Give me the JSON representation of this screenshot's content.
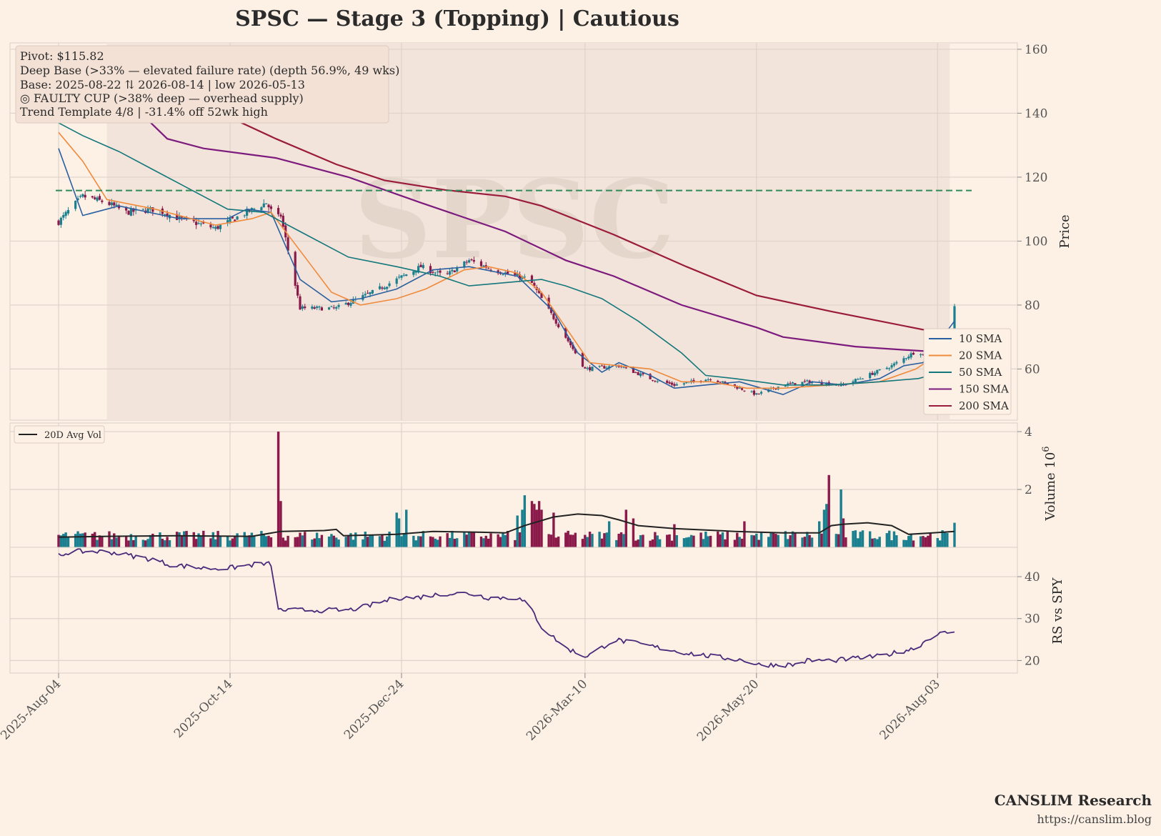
{
  "title": "SPSC  —  Stage 3 (Topping)  |  Cautious",
  "watermark": "SPSC",
  "info_box": [
    "Pivot: $115.82",
    "Deep Base (>33% — elevated failure rate)  (depth 56.9%, 49 wks)",
    "Base: 2025-08-22 ⇅ 2026-08-14  |  low 2026-05-13",
    "◎ FAULTY CUP (>38% deep — overhead supply)",
    "Trend Template 4/8  |  -31.4% off 52wk high"
  ],
  "branding": {
    "name": "CANSLIM Research",
    "url": "https://canslim.blog"
  },
  "colors": {
    "background": "#fdf1e6",
    "up": "#1a7f8e",
    "down": "#8b1a4a",
    "pivot": "#2e8b57",
    "sma10": "#2a5fa0",
    "sma20": "#f08a3c",
    "sma50": "#13777c",
    "sma150": "#7d1a7d",
    "sma200": "#9b1b3c",
    "avgvol": "#222222",
    "rs": "#4a2a7a"
  },
  "chart_data": {
    "type": "candlestick",
    "x_tick_labels": [
      "2025-Aug-04",
      "2025-Oct-14",
      "2025-Dec-24",
      "2026-Mar-10",
      "2026-May-20",
      "2026-Aug-03"
    ],
    "x_tick_days": [
      0,
      71,
      142,
      218,
      289,
      364
    ],
    "base_shading_days": [
      20,
      369
    ],
    "price_panel": {
      "ylabel": "Price",
      "yticks": [
        60,
        80,
        100,
        120,
        140,
        160
      ],
      "ylim": [
        44,
        162
      ],
      "pivot": 115.82,
      "price_path": [
        [
          0,
          106
        ],
        [
          6,
          111
        ],
        [
          10,
          114
        ],
        [
          20,
          112
        ],
        [
          28,
          109
        ],
        [
          40,
          110
        ],
        [
          50,
          107
        ],
        [
          65,
          104
        ],
        [
          78,
          109
        ],
        [
          86,
          112
        ],
        [
          90,
          107
        ],
        [
          92,
          108
        ],
        [
          100,
          79
        ],
        [
          115,
          79
        ],
        [
          130,
          84
        ],
        [
          140,
          88
        ],
        [
          150,
          92
        ],
        [
          160,
          89
        ],
        [
          170,
          94
        ],
        [
          180,
          91
        ],
        [
          195,
          88
        ],
        [
          210,
          70
        ],
        [
          218,
          60
        ],
        [
          232,
          61
        ],
        [
          245,
          57
        ],
        [
          255,
          55
        ],
        [
          270,
          57
        ],
        [
          282,
          54
        ],
        [
          289,
          52
        ],
        [
          300,
          55
        ],
        [
          310,
          56
        ],
        [
          325,
          55
        ],
        [
          345,
          61
        ],
        [
          356,
          66
        ],
        [
          362,
          61
        ],
        [
          368,
          72
        ],
        [
          371,
          79
        ]
      ],
      "sma_series": [
        {
          "name": "10 SMA",
          "points": [
            [
              0,
              129
            ],
            [
              10,
              108
            ],
            [
              25,
              111
            ],
            [
              50,
              107
            ],
            [
              70,
              107
            ],
            [
              78,
              110
            ],
            [
              88,
              109
            ],
            [
              100,
              88
            ],
            [
              113,
              81
            ],
            [
              125,
              82
            ],
            [
              140,
              85
            ],
            [
              155,
              91
            ],
            [
              170,
              92
            ],
            [
              190,
              89
            ],
            [
              205,
              78
            ],
            [
              215,
              65
            ],
            [
              225,
              59
            ],
            [
              232,
              62
            ],
            [
              245,
              58
            ],
            [
              255,
              54
            ],
            [
              268,
              55
            ],
            [
              282,
              56
            ],
            [
              300,
              52
            ],
            [
              312,
              56
            ],
            [
              325,
              55
            ],
            [
              340,
              57
            ],
            [
              350,
              61
            ],
            [
              358,
              62
            ],
            [
              371,
              75
            ]
          ]
        },
        {
          "name": "20 SMA",
          "points": [
            [
              0,
              134
            ],
            [
              10,
              125
            ],
            [
              20,
              113
            ],
            [
              40,
              110
            ],
            [
              65,
              105
            ],
            [
              80,
              107
            ],
            [
              88,
              109
            ],
            [
              105,
              92
            ],
            [
              113,
              84
            ],
            [
              125,
              80
            ],
            [
              140,
              82
            ],
            [
              152,
              85
            ],
            [
              168,
              91
            ],
            [
              178,
              92
            ],
            [
              190,
              90
            ],
            [
              200,
              84
            ],
            [
              210,
              73
            ],
            [
              220,
              62
            ],
            [
              232,
              61
            ],
            [
              245,
              60
            ],
            [
              258,
              56
            ],
            [
              270,
              56
            ],
            [
              285,
              54
            ],
            [
              300,
              54
            ],
            [
              320,
              55
            ],
            [
              340,
              56
            ],
            [
              355,
              60
            ],
            [
              371,
              68
            ]
          ]
        },
        {
          "name": "50 SMA",
          "points": [
            [
              0,
              137
            ],
            [
              10,
              133
            ],
            [
              25,
              128
            ],
            [
              40,
              122
            ],
            [
              70,
              110
            ],
            [
              85,
              109
            ],
            [
              100,
              103
            ],
            [
              120,
              95
            ],
            [
              140,
              92
            ],
            [
              158,
              89
            ],
            [
              170,
              86
            ],
            [
              185,
              87
            ],
            [
              200,
              88
            ],
            [
              210,
              86
            ],
            [
              225,
              82
            ],
            [
              240,
              75
            ],
            [
              258,
              65
            ],
            [
              268,
              58
            ],
            [
              280,
              57
            ],
            [
              300,
              55
            ],
            [
              320,
              55
            ],
            [
              340,
              56
            ],
            [
              356,
              57
            ],
            [
              371,
              60
            ]
          ]
        },
        {
          "name": "150 SMA",
          "points": [
            [
              30,
              143
            ],
            [
              45,
              132
            ],
            [
              60,
              129
            ],
            [
              80,
              127
            ],
            [
              90,
              126
            ],
            [
              120,
              120
            ],
            [
              150,
              112
            ],
            [
              185,
              103
            ],
            [
              210,
              94
            ],
            [
              230,
              89
            ],
            [
              258,
              80
            ],
            [
              289,
              73
            ],
            [
              300,
              70
            ],
            [
              330,
              67
            ],
            [
              350,
              66
            ],
            [
              371,
              65
            ]
          ]
        },
        {
          "name": "200 SMA",
          "points": [
            [
              70,
              139
            ],
            [
              90,
              132
            ],
            [
              115,
              124
            ],
            [
              135,
              119
            ],
            [
              160,
              116
            ],
            [
              185,
              114
            ],
            [
              200,
              111
            ],
            [
              230,
              102
            ],
            [
              260,
              92
            ],
            [
              289,
              83
            ],
            [
              320,
              78
            ],
            [
              340,
              75
            ],
            [
              360,
              72
            ],
            [
              371,
              70
            ]
          ]
        }
      ]
    },
    "volume_panel": {
      "ylabel": "Volume",
      "unit_exponent": "10^6",
      "yticks": [
        2,
        4
      ],
      "ylim": [
        0,
        4.1
      ],
      "avg_label": "20D Avg Vol",
      "baseline_millions": 0.5,
      "spikes": [
        [
          91,
          4.0
        ],
        [
          92,
          1.6
        ],
        [
          104,
          0.8
        ],
        [
          140,
          1.2
        ],
        [
          141,
          1.0
        ],
        [
          144,
          1.3
        ],
        [
          180,
          1.0
        ],
        [
          190,
          1.1
        ],
        [
          192,
          1.3
        ],
        [
          193,
          1.8
        ],
        [
          194,
          2.7
        ],
        [
          195,
          2.0
        ],
        [
          196,
          1.6
        ],
        [
          197,
          1.5
        ],
        [
          198,
          1.3
        ],
        [
          199,
          1.6
        ],
        [
          200,
          1.3
        ],
        [
          205,
          1.2
        ],
        [
          208,
          1.2
        ],
        [
          228,
          0.9
        ],
        [
          235,
          1.3
        ],
        [
          238,
          1.0
        ],
        [
          255,
          0.8
        ],
        [
          284,
          0.9
        ],
        [
          300,
          1.1
        ],
        [
          315,
          0.9
        ],
        [
          317,
          1.3
        ],
        [
          318,
          1.5
        ],
        [
          319,
          2.5
        ],
        [
          324,
          2.0
        ],
        [
          325,
          1.0
        ],
        [
          355,
          1.3
        ],
        [
          362,
          0.9
        ],
        [
          371,
          0.85
        ]
      ],
      "avg_path": [
        [
          0,
          0.35
        ],
        [
          20,
          0.38
        ],
        [
          50,
          0.4
        ],
        [
          80,
          0.38
        ],
        [
          92,
          0.55
        ],
        [
          110,
          0.58
        ],
        [
          115,
          0.62
        ],
        [
          118,
          0.4
        ],
        [
          140,
          0.45
        ],
        [
          155,
          0.55
        ],
        [
          175,
          0.52
        ],
        [
          185,
          0.5
        ],
        [
          193,
          0.75
        ],
        [
          205,
          1.05
        ],
        [
          215,
          1.15
        ],
        [
          225,
          1.1
        ],
        [
          232,
          0.95
        ],
        [
          240,
          0.75
        ],
        [
          255,
          0.65
        ],
        [
          280,
          0.55
        ],
        [
          300,
          0.5
        ],
        [
          315,
          0.5
        ],
        [
          320,
          0.75
        ],
        [
          325,
          0.8
        ],
        [
          335,
          0.85
        ],
        [
          345,
          0.75
        ],
        [
          352,
          0.45
        ],
        [
          362,
          0.5
        ],
        [
          371,
          0.55
        ]
      ]
    },
    "rs_panel": {
      "ylabel": "RS vs SPY",
      "yticks": [
        20,
        30,
        40
      ],
      "ylim": [
        17,
        47
      ],
      "rs_path": [
        [
          0,
          45
        ],
        [
          5,
          46
        ],
        [
          12,
          46
        ],
        [
          20,
          46
        ],
        [
          30,
          45
        ],
        [
          40,
          44
        ],
        [
          45,
          43
        ],
        [
          60,
          42
        ],
        [
          70,
          42
        ],
        [
          82,
          43
        ],
        [
          88,
          43
        ],
        [
          90,
          41
        ],
        [
          91,
          32
        ],
        [
          100,
          32
        ],
        [
          110,
          32
        ],
        [
          120,
          32
        ],
        [
          128,
          33
        ],
        [
          140,
          35
        ],
        [
          148,
          35
        ],
        [
          160,
          36
        ],
        [
          170,
          36
        ],
        [
          178,
          35
        ],
        [
          190,
          35
        ],
        [
          195,
          33
        ],
        [
          200,
          28
        ],
        [
          210,
          23
        ],
        [
          218,
          21
        ],
        [
          222,
          22
        ],
        [
          230,
          25
        ],
        [
          240,
          24
        ],
        [
          258,
          22
        ],
        [
          270,
          21
        ],
        [
          285,
          20
        ],
        [
          289,
          19
        ],
        [
          300,
          19
        ],
        [
          305,
          19
        ],
        [
          310,
          20
        ],
        [
          320,
          20
        ],
        [
          340,
          21
        ],
        [
          355,
          23
        ],
        [
          362,
          26
        ],
        [
          371,
          27
        ]
      ]
    }
  }
}
